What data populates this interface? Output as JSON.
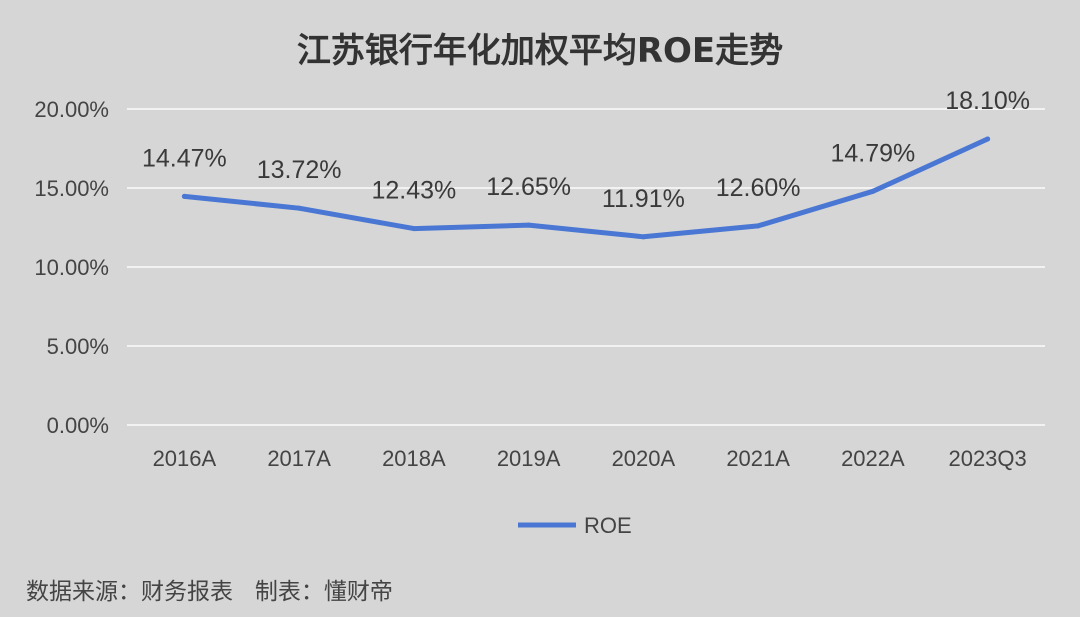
{
  "chart_data": {
    "type": "line",
    "title": "江苏银行年化加权平均ROE走势",
    "categories": [
      "2016A",
      "2017A",
      "2018A",
      "2019A",
      "2020A",
      "2021A",
      "2022A",
      "2023Q3"
    ],
    "series": [
      {
        "name": "ROE",
        "values": [
          14.47,
          13.72,
          12.43,
          12.65,
          11.91,
          12.6,
          14.79,
          18.1
        ],
        "labels": [
          "14.47%",
          "13.72%",
          "12.43%",
          "12.65%",
          "11.91%",
          "12.60%",
          "14.79%",
          "18.10%"
        ],
        "color": "#4a77d4"
      }
    ],
    "y_ticks": [
      "0.00%",
      "5.00%",
      "10.00%",
      "15.00%",
      "20.00%"
    ],
    "y_tick_values": [
      0,
      5,
      10,
      15,
      20
    ],
    "ylim": [
      0,
      20
    ],
    "grid": true,
    "legend_position": "bottom",
    "xlabel": "",
    "ylabel": ""
  },
  "footer": {
    "source": "数据来源：财务报表   制表：懂财帝"
  },
  "colors": {
    "background": "#d6d6d6",
    "line": "#4a77d4",
    "grid": "#f2f2f2"
  }
}
